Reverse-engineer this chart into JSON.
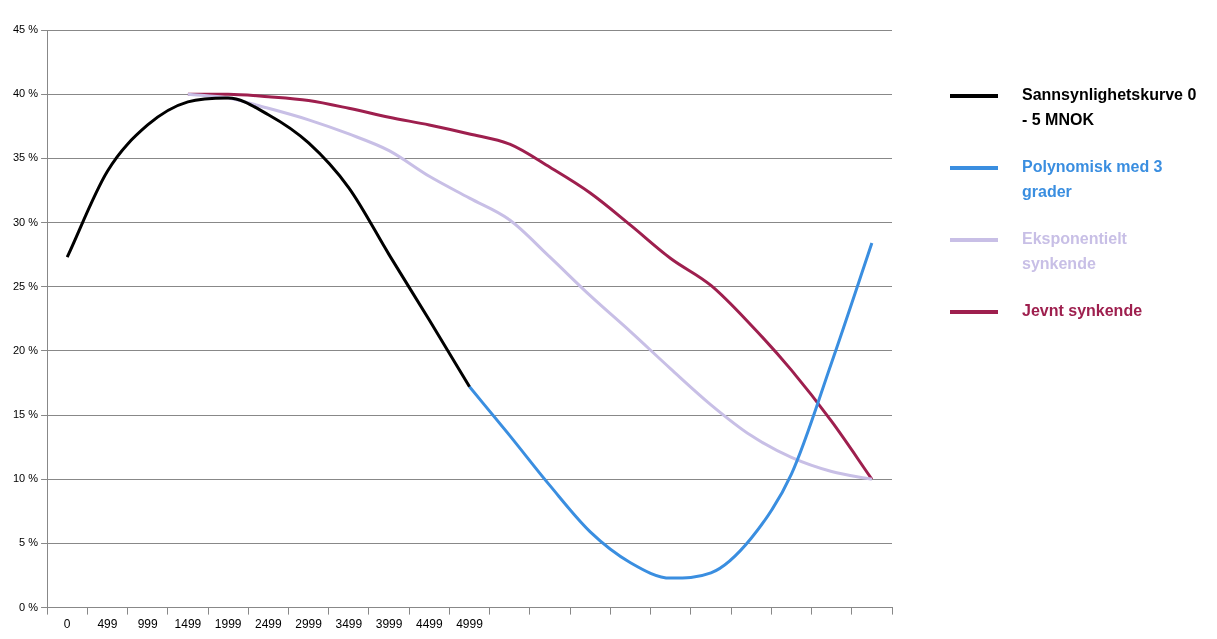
{
  "chart_data": {
    "type": "line",
    "categories": [
      "0",
      "499",
      "999",
      "1499",
      "1999",
      "2499",
      "2999",
      "3499",
      "3999",
      "4499",
      "4999",
      null,
      null,
      null,
      null,
      null,
      null,
      null,
      null,
      null,
      null
    ],
    "series": [
      {
        "name": "Sannsynlighetskurve 0 - 5 MNOK",
        "color": "#000000",
        "values": [
          27.3,
          34,
          37.6,
          39.4,
          39.7,
          38.4,
          36.2,
          32.7,
          27.5,
          22.4,
          17.2,
          null,
          null,
          null,
          null,
          null,
          null,
          null,
          null,
          null,
          null
        ]
      },
      {
        "name": "Polynomisk med 3 grader",
        "color": "#3a8ee0",
        "values": [
          null,
          null,
          null,
          null,
          null,
          null,
          null,
          null,
          null,
          null,
          17.2,
          13.4,
          9.5,
          5.9,
          3.5,
          2.3,
          2.7,
          5.4,
          10.4,
          19.1,
          28.4
        ]
      },
      {
        "name": "Eksponentielt synkende",
        "color": "#c8bfe6",
        "values": [
          null,
          null,
          null,
          40,
          39.7,
          38.9,
          38,
          36.9,
          35.6,
          33.6,
          31.9,
          30.2,
          27.3,
          24.3,
          21.5,
          18.6,
          15.8,
          13.4,
          11.7,
          10.6,
          10
        ]
      },
      {
        "name": "Jevnt synkende",
        "color": "#9e1f4e",
        "values": [
          null,
          null,
          null,
          40,
          40,
          39.8,
          39.5,
          38.9,
          38.2,
          37.6,
          36.9,
          36.1,
          34.3,
          32.3,
          29.8,
          27.2,
          25.1,
          22,
          18.5,
          14.5,
          10
        ]
      }
    ],
    "ylim": [
      0,
      45
    ],
    "yticks": [
      {
        "value": 0,
        "label": "0 %"
      },
      {
        "value": 5,
        "label": "5 %"
      },
      {
        "value": 10,
        "label": "10 %"
      },
      {
        "value": 15,
        "label": "15 %"
      },
      {
        "value": 20,
        "label": "20 %"
      },
      {
        "value": 25,
        "label": "25 %"
      },
      {
        "value": 30,
        "label": "30 %"
      },
      {
        "value": 35,
        "label": "35 %"
      },
      {
        "value": 40,
        "label": "40 %"
      },
      {
        "value": 45,
        "label": "45 %"
      }
    ],
    "grid": "y",
    "legend": "right",
    "marker": "none"
  }
}
